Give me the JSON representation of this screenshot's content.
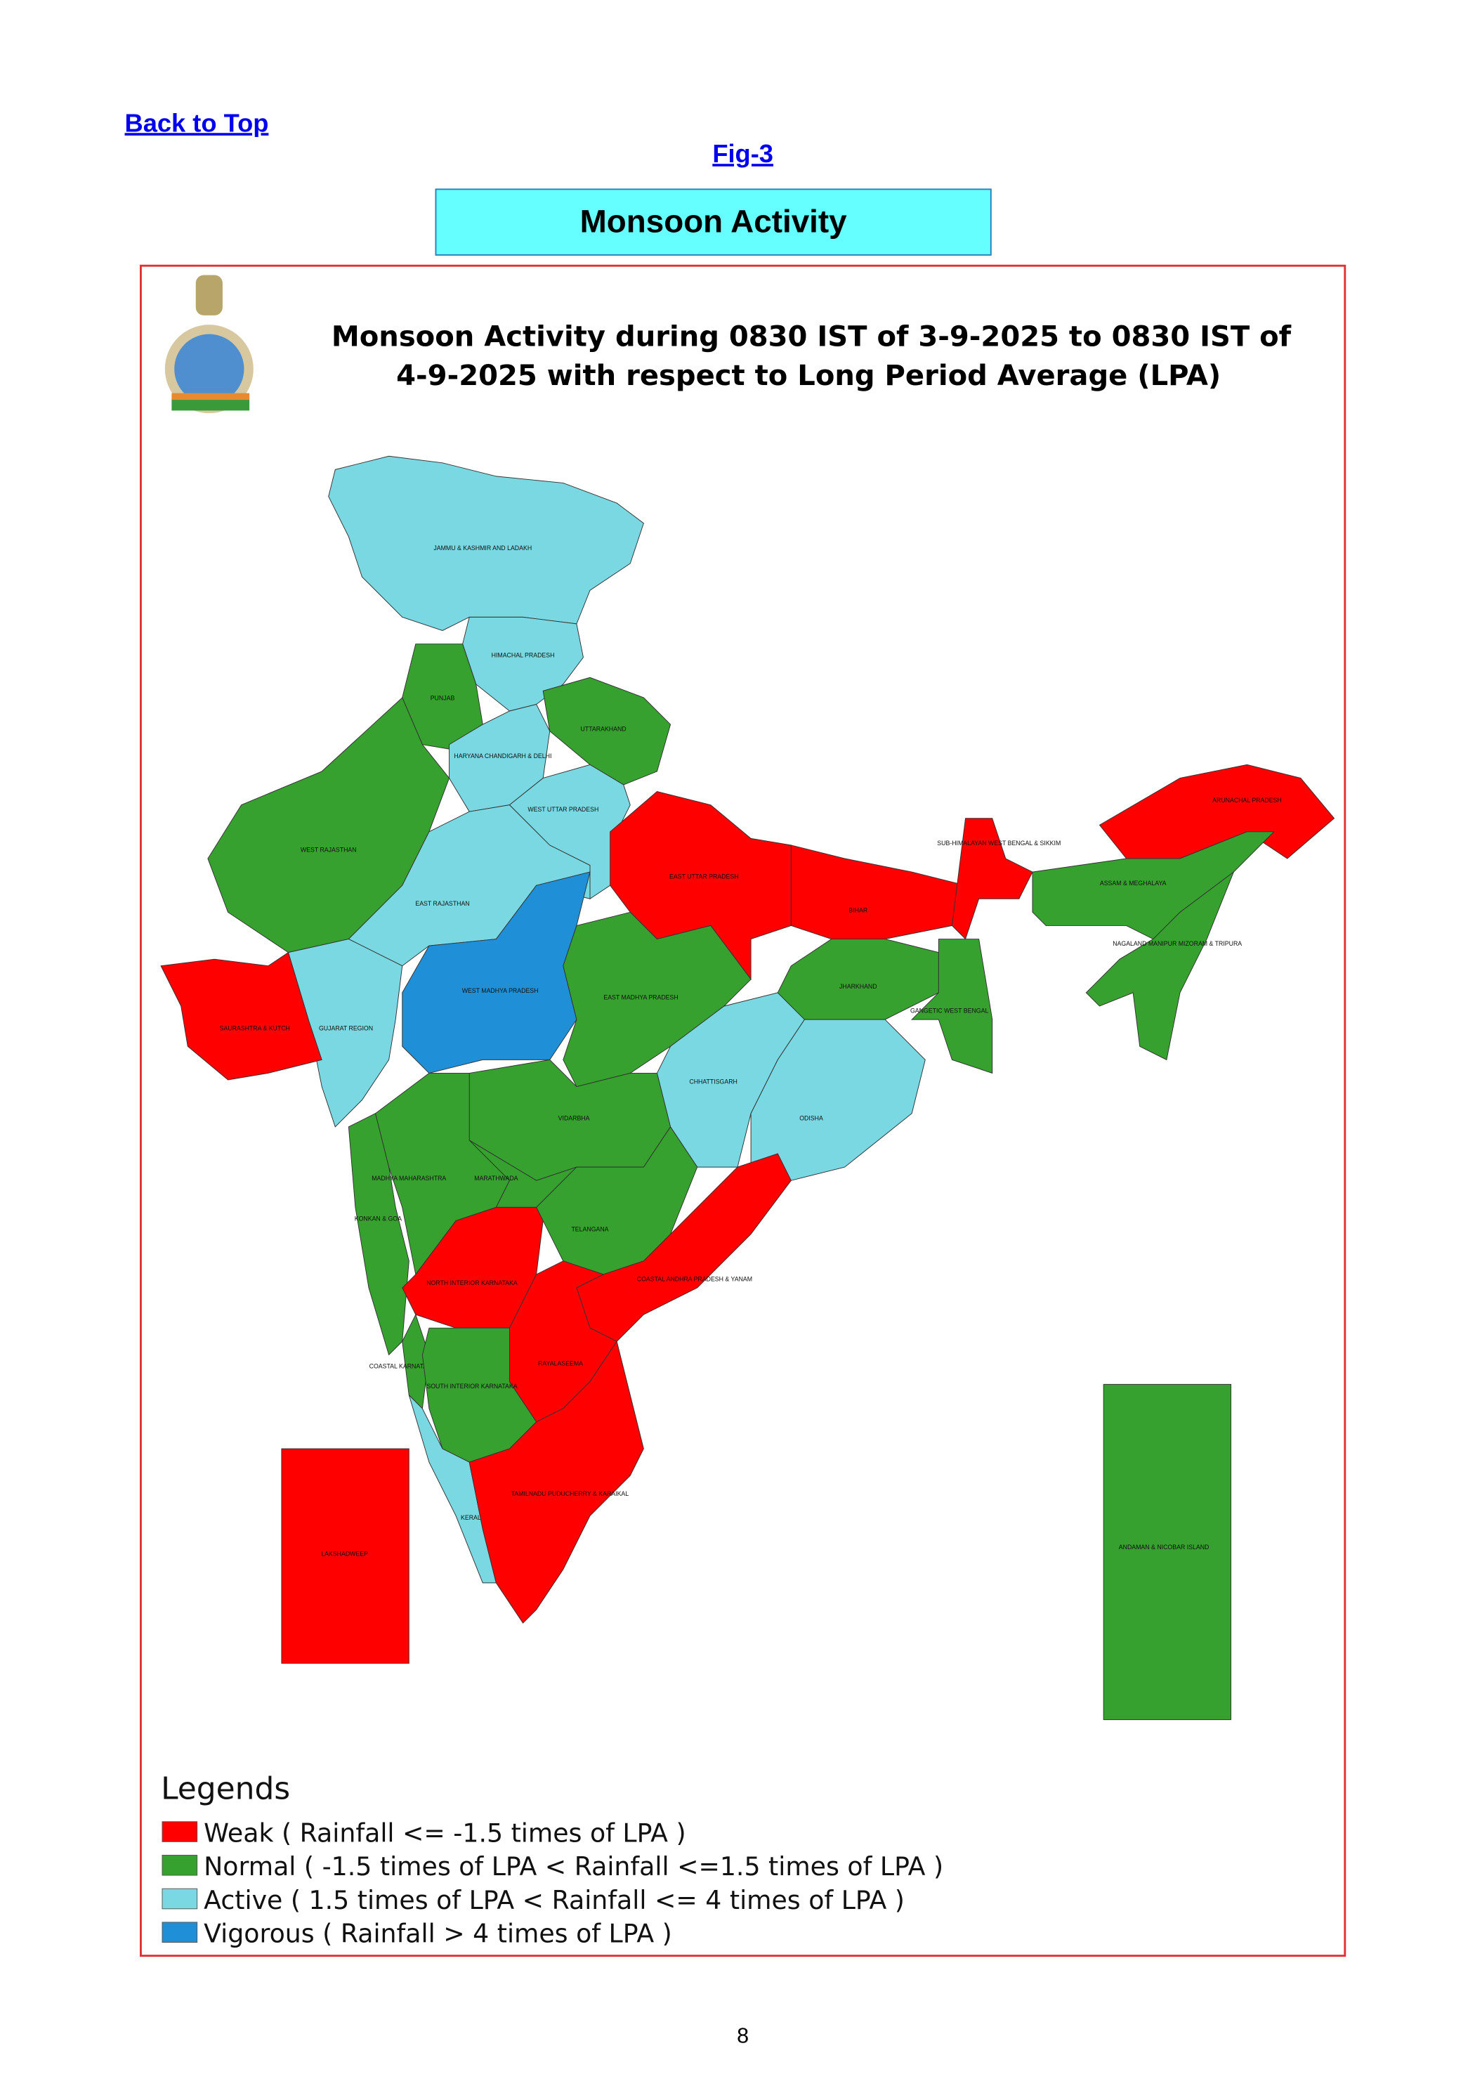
{
  "header": {
    "back_link": "Back to Top",
    "figure_link": "Fig-3",
    "banner": "Monsoon Activity"
  },
  "map": {
    "title_lines": [
      "Monsoon Activity during 0830 IST of 3-9-2025 to 0830 IST of",
      "4-9-2025 with respect to Long Period Average (LPA)"
    ],
    "regions": [
      {
        "label": "JAMMU & KASHMIR AND LADAKH",
        "color": "#7ad8e2"
      },
      {
        "label": "HIMACHAL PRADESH",
        "color": "#7ad8e2"
      },
      {
        "label": "PUNJAB",
        "color": "#36a12e"
      },
      {
        "label": "UTTARAKHAND",
        "color": "#36a12e"
      },
      {
        "label": "HARYANA CHANDIGARH & DELHI",
        "color": "#7ad8e2"
      },
      {
        "label": "WEST RAJASTHAN",
        "color": "#36a12e"
      },
      {
        "label": "EAST RAJASTHAN",
        "color": "#7ad8e2"
      },
      {
        "label": "WEST UTTAR PRADESH",
        "color": "#7ad8e2"
      },
      {
        "label": "EAST UTTAR PRADESH",
        "color": "#ff0000"
      },
      {
        "label": "BIHAR",
        "color": "#ff0000"
      },
      {
        "label": "GUJARAT REGION",
        "color": "#7ad8e2"
      },
      {
        "label": "SAURASHTRA & KUTCH",
        "color": "#ff0000"
      },
      {
        "label": "WEST MADHYA PRADESH",
        "color": "#1f8fd8"
      },
      {
        "label": "EAST MADHYA PRADESH",
        "color": "#36a12e"
      },
      {
        "label": "CHHATTISGARH",
        "color": "#7ad8e2"
      },
      {
        "label": "JHARKHAND",
        "color": "#36a12e"
      },
      {
        "label": "GANGETIC WEST BENGAL",
        "color": "#36a12e"
      },
      {
        "label": "SUB-HIMALAYAN WEST BENGAL & SIKKIM",
        "color": "#ff0000"
      },
      {
        "label": "ODISHA",
        "color": "#7ad8e2"
      },
      {
        "label": "ARUNACHAL PRADESH",
        "color": "#ff0000"
      },
      {
        "label": "ASSAM & MEGHALAYA",
        "color": "#36a12e"
      },
      {
        "label": "NAGALAND MANIPUR MIZORAM & TRIPURA",
        "color": "#36a12e"
      },
      {
        "label": "VIDARBHA",
        "color": "#36a12e"
      },
      {
        "label": "KONKAN & GOA",
        "color": "#36a12e"
      },
      {
        "label": "MADHYA MAHARASHTRA",
        "color": "#36a12e"
      },
      {
        "label": "MARATHWADA",
        "color": "#36a12e"
      },
      {
        "label": "TELANGANA",
        "color": "#36a12e"
      },
      {
        "label": "COASTAL ANDHRA PRADESH & YANAM",
        "color": "#ff0000"
      },
      {
        "label": "NORTH INTERIOR KARNATAKA",
        "color": "#ff0000"
      },
      {
        "label": "RAYALASEEMA",
        "color": "#ff0000"
      },
      {
        "label": "COASTAL KARNATAKA",
        "color": "#36a12e"
      },
      {
        "label": "SOUTH INTERIOR KARNATAKA",
        "color": "#36a12e"
      },
      {
        "label": "KERALA & MAHE",
        "color": "#7ad8e2"
      },
      {
        "label": "TAMILNADU PUDUCHERRY & KARAIKAL",
        "color": "#ff0000"
      },
      {
        "label": "LAKSHADWEEP",
        "color": "#ff0000"
      },
      {
        "label": "ANDAMAN & NICOBAR ISLAND",
        "color": "#36a12e"
      }
    ],
    "legend": {
      "title": "Legends",
      "entries": [
        {
          "label": "Weak ( Rainfall <= -1.5 times of LPA )",
          "color": "#ff0000"
        },
        {
          "label": "Normal ( -1.5 times of LPA < Rainfall <=1.5 times of LPA )",
          "color": "#36a12e"
        },
        {
          "label": "Active ( 1.5 times of LPA < Rainfall <= 4 times of LPA )",
          "color": "#7ad8e2"
        },
        {
          "label": "Vigorous ( Rainfall > 4 times of LPA )",
          "color": "#1f8fd8"
        }
      ]
    }
  },
  "footer": {
    "page_number": "8"
  }
}
